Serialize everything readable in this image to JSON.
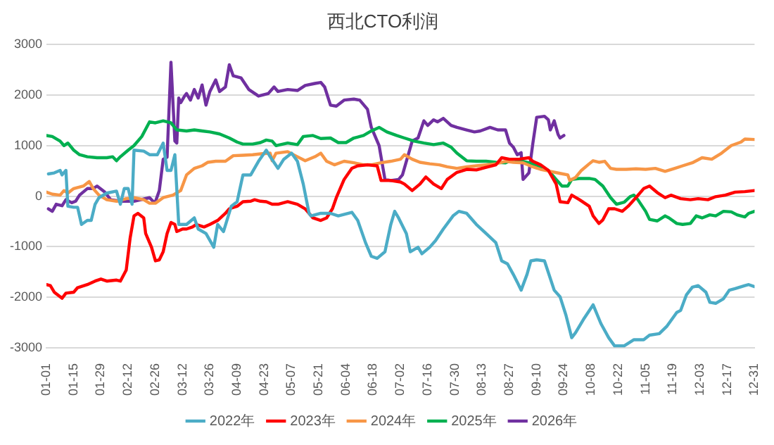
{
  "chart_data": {
    "type": "line",
    "title": "西北CTO利润",
    "xlim": [
      "--01-01",
      "--12-31"
    ],
    "xticks": [
      {
        "value": "--01-01",
        "label": "01-01"
      },
      {
        "value": "--01-15",
        "label": "01-15"
      },
      {
        "value": "--01-29",
        "label": "01-29"
      },
      {
        "value": "--02-12",
        "label": "02-12"
      },
      {
        "value": "--02-26",
        "label": "02-26"
      },
      {
        "value": "--03-12",
        "label": "03-12"
      },
      {
        "value": "--03-26",
        "label": "03-26"
      },
      {
        "value": "--04-09",
        "label": "04-09"
      },
      {
        "value": "--04-23",
        "label": "04-23"
      },
      {
        "value": "--05-07",
        "label": "05-07"
      },
      {
        "value": "--05-21",
        "label": "05-21"
      },
      {
        "value": "--06-04",
        "label": "06-04"
      },
      {
        "value": "--06-18",
        "label": "06-18"
      },
      {
        "value": "--07-02",
        "label": "07-02"
      },
      {
        "value": "--07-16",
        "label": "07-16"
      },
      {
        "value": "--07-30",
        "label": "07-30"
      },
      {
        "value": "--08-13",
        "label": "08-13"
      },
      {
        "value": "--08-27",
        "label": "08-27"
      },
      {
        "value": "--09-10",
        "label": "09-10"
      },
      {
        "value": "--09-24",
        "label": "09-24"
      },
      {
        "value": "--10-08",
        "label": "10-08"
      },
      {
        "value": "--10-22",
        "label": "10-22"
      },
      {
        "value": "--11-05",
        "label": "11-05"
      },
      {
        "value": "--11-19",
        "label": "11-19"
      },
      {
        "value": "--12-03",
        "label": "12-03"
      },
      {
        "value": "--12-17",
        "label": "12-17"
      },
      {
        "value": "--12-31",
        "label": "12-31"
      }
    ],
    "ylim": [
      -3000,
      3000
    ],
    "yticks": [
      -3000,
      -2000,
      -1000,
      0,
      1000,
      2000,
      3000
    ],
    "grid": "y",
    "legend": "bottom",
    "marker": "none",
    "line_style": "solid",
    "series": [
      {
        "name": "2022年",
        "color": "#4bacc6",
        "x": [
          "--01-02",
          "--01-05",
          "--01-08",
          "--01-09",
          "--01-11",
          "--01-12",
          "--01-15",
          "--01-17",
          "--01-19",
          "--01-22",
          "--01-24",
          "--01-26",
          "--01-28",
          "--02-01",
          "--02-06",
          "--02-08",
          "--02-10",
          "--02-12",
          "--02-14",
          "--02-15",
          "--02-20",
          "--02-23",
          "--02-27",
          "--03-02",
          "--03-04",
          "--03-06",
          "--03-08",
          "--03-10",
          "--03-14",
          "--03-18",
          "--03-20",
          "--03-24",
          "--03-28",
          "--03-30",
          "--04-02",
          "--04-06",
          "--04-09",
          "--04-12",
          "--04-16",
          "--04-20",
          "--04-24",
          "--04-26",
          "--04-30",
          "--05-03",
          "--05-07",
          "--05-10",
          "--05-13",
          "--05-16",
          "--05-17",
          "--05-22",
          "--05-27",
          "--05-31",
          "--06-07",
          "--06-10",
          "--06-14",
          "--06-17",
          "--06-20",
          "--06-24",
          "--06-27",
          "--06-29",
          "--07-01",
          "--07-05",
          "--07-07",
          "--07-11",
          "--07-13",
          "--07-17",
          "--07-20",
          "--07-24",
          "--07-29",
          "--08-01",
          "--08-05",
          "--08-10",
          "--08-15",
          "--08-20",
          "--08-23",
          "--08-26",
          "--08-29",
          "--08-31",
          "--09-02",
          "--09-05",
          "--09-07",
          "--09-10",
          "--09-14",
          "--09-19",
          "--09-22",
          "--09-25",
          "--09-28",
          "--09-30",
          "--10-04",
          "--10-09",
          "--10-13",
          "--10-17",
          "--10-20",
          "--10-25",
          "--10-30",
          "--11-04",
          "--11-07",
          "--11-12",
          "--11-16",
          "--11-21",
          "--11-23",
          "--11-26",
          "--11-29",
          "--12-02",
          "--12-06",
          "--12-08",
          "--12-11",
          "--12-15",
          "--12-18",
          "--12-21",
          "--12-26",
          "--12-28",
          "--12-31"
        ],
        "values": [
          440,
          460,
          510,
          420,
          510,
          -200,
          -220,
          -220,
          -560,
          -480,
          -480,
          -160,
          -30,
          60,
          100,
          -160,
          150,
          150,
          -160,
          910,
          890,
          820,
          820,
          1050,
          510,
          510,
          820,
          -560,
          -560,
          -430,
          -650,
          -740,
          -1010,
          -560,
          -700,
          -200,
          -110,
          420,
          420,
          690,
          910,
          780,
          550,
          730,
          850,
          690,
          240,
          -340,
          -390,
          -340,
          -340,
          -390,
          -320,
          -480,
          -920,
          -1190,
          -1230,
          -1100,
          -560,
          -300,
          -430,
          -740,
          -1100,
          -1010,
          -1140,
          -1010,
          -880,
          -650,
          -390,
          -300,
          -340,
          -560,
          -740,
          -920,
          -1280,
          -1340,
          -1550,
          -1700,
          -1860,
          -1550,
          -1280,
          -1260,
          -1280,
          -1860,
          -1990,
          -2350,
          -2800,
          -2700,
          -2440,
          -2150,
          -2520,
          -2800,
          -2960,
          -2960,
          -2840,
          -2840,
          -2750,
          -2720,
          -2570,
          -2300,
          -2260,
          -1950,
          -1800,
          -1770,
          -1900,
          -2100,
          -2120,
          -2030,
          -1860,
          -1830,
          -1770,
          -1750,
          -1790
        ]
      },
      {
        "name": "2023年",
        "color": "#ff0000",
        "x": [
          "--01-01",
          "--01-03",
          "--01-05",
          "--01-09",
          "--01-11",
          "--01-15",
          "--01-17",
          "--01-22",
          "--01-26",
          "--01-29",
          "--02-01",
          "--02-06",
          "--02-08",
          "--02-11",
          "--02-13",
          "--02-15",
          "--02-17",
          "--02-20",
          "--02-21",
          "--02-24",
          "--02-26",
          "--02-28",
          "--03-02",
          "--03-04",
          "--03-06",
          "--03-08",
          "--03-09",
          "--03-12",
          "--03-14",
          "--03-17",
          "--03-19",
          "--03-23",
          "--03-26",
          "--03-30",
          "--04-03",
          "--04-05",
          "--04-09",
          "--04-12",
          "--04-16",
          "--04-18",
          "--04-21",
          "--04-24",
          "--04-27",
          "--04-30",
          "--05-05",
          "--05-10",
          "--05-14",
          "--05-18",
          "--05-22",
          "--05-25",
          "--05-28",
          "--05-30",
          "--06-03",
          "--06-07",
          "--06-10",
          "--06-15",
          "--06-20",
          "--06-22",
          "--06-27",
          "--07-02",
          "--07-04",
          "--07-08",
          "--07-12",
          "--07-15",
          "--07-19",
          "--07-23",
          "--07-26",
          "--07-31",
          "--08-05",
          "--08-10",
          "--08-15",
          "--08-20",
          "--08-23",
          "--08-27",
          "--09-01",
          "--09-06",
          "--09-08",
          "--09-12",
          "--09-16",
          "--09-20",
          "--09-22",
          "--09-26",
          "--09-28",
          "--10-02",
          "--10-07",
          "--10-09",
          "--10-12",
          "--10-14",
          "--10-17",
          "--10-20",
          "--10-24",
          "--10-27",
          "--10-31",
          "--11-04",
          "--11-07",
          "--11-11",
          "--11-15",
          "--11-18",
          "--11-23",
          "--11-28",
          "--12-02",
          "--12-07",
          "--12-11",
          "--12-16",
          "--12-21",
          "--12-26",
          "--12-31"
        ],
        "values": [
          -1750,
          -1770,
          -1900,
          -2020,
          -1920,
          -1900,
          -1810,
          -1750,
          -1680,
          -1640,
          -1680,
          -1660,
          -1680,
          -1460,
          -830,
          -390,
          -340,
          -430,
          -740,
          -1010,
          -1280,
          -1260,
          -1100,
          -740,
          -520,
          -560,
          -700,
          -650,
          -650,
          -610,
          -560,
          -610,
          -560,
          -480,
          -340,
          -250,
          -200,
          -110,
          -100,
          -70,
          -100,
          -110,
          -160,
          -160,
          -110,
          -160,
          -250,
          -430,
          -480,
          -430,
          -250,
          -30,
          330,
          550,
          600,
          620,
          600,
          310,
          310,
          280,
          240,
          110,
          240,
          380,
          240,
          150,
          330,
          470,
          530,
          520,
          570,
          620,
          760,
          730,
          730,
          760,
          690,
          620,
          510,
          240,
          -110,
          -130,
          20,
          -70,
          -200,
          -390,
          -540,
          -470,
          -250,
          -250,
          -300,
          -200,
          -30,
          150,
          200,
          70,
          -30,
          20,
          -50,
          -70,
          -50,
          -70,
          -10,
          20,
          80,
          90,
          110
        ]
      },
      {
        "name": "2024年",
        "color": "#f79646",
        "x": [
          "--01-01",
          "--01-04",
          "--01-08",
          "--01-10",
          "--01-12",
          "--01-15",
          "--01-20",
          "--01-23",
          "--01-25",
          "--01-28",
          "--02-01",
          "--02-06",
          "--02-11",
          "--02-15",
          "--02-20",
          "--02-23",
          "--02-26",
          "--03-02",
          "--03-07",
          "--03-11",
          "--03-14",
          "--03-18",
          "--03-22",
          "--03-25",
          "--03-29",
          "--04-03",
          "--04-07",
          "--04-12",
          "--04-17",
          "--04-22",
          "--04-26",
          "--04-27",
          "--04-29",
          "--05-05",
          "--05-10",
          "--05-14",
          "--05-19",
          "--05-22",
          "--05-25",
          "--05-29",
          "--06-03",
          "--06-08",
          "--06-13",
          "--06-17",
          "--06-22",
          "--06-27",
          "--07-02",
          "--07-04",
          "--07-08",
          "--07-12",
          "--07-17",
          "--07-22",
          "--07-26",
          "--07-31",
          "--08-05",
          "--08-10",
          "--08-15",
          "--08-20",
          "--08-25",
          "--08-29",
          "--09-03",
          "--09-08",
          "--09-12",
          "--09-17",
          "--09-22",
          "--09-26",
          "--09-27",
          "--09-30",
          "--10-03",
          "--10-07",
          "--10-09",
          "--10-12",
          "--10-15",
          "--10-18",
          "--10-21",
          "--10-26",
          "--10-31",
          "--11-05",
          "--11-10",
          "--11-15",
          "--11-20",
          "--11-24",
          "--11-29",
          "--12-04",
          "--12-09",
          "--12-14",
          "--12-19",
          "--12-24",
          "--12-26",
          "--12-31"
        ],
        "values": [
          80,
          40,
          20,
          110,
          60,
          150,
          200,
          290,
          150,
          20,
          -70,
          -100,
          -50,
          -30,
          -70,
          -140,
          -140,
          -30,
          20,
          110,
          420,
          550,
          600,
          670,
          690,
          690,
          800,
          810,
          820,
          840,
          850,
          700,
          850,
          880,
          780,
          700,
          780,
          850,
          690,
          620,
          690,
          660,
          620,
          620,
          660,
          690,
          730,
          820,
          730,
          670,
          640,
          620,
          580,
          550,
          580,
          600,
          620,
          640,
          690,
          670,
          660,
          580,
          530,
          490,
          450,
          420,
          310,
          370,
          510,
          640,
          700,
          670,
          690,
          550,
          530,
          530,
          540,
          530,
          550,
          490,
          550,
          600,
          660,
          760,
          730,
          850,
          1000,
          1070,
          1130,
          1120
        ]
      },
      {
        "name": "2025年",
        "color": "#00b050",
        "x": [
          "--01-01",
          "--01-04",
          "--01-08",
          "--01-10",
          "--01-12",
          "--01-15",
          "--01-18",
          "--01-22",
          "--01-27",
          "--02-01",
          "--02-04",
          "--02-06",
          "--02-08",
          "--02-12",
          "--02-15",
          "--02-19",
          "--02-23",
          "--02-26",
          "--03-02",
          "--03-06",
          "--03-09",
          "--03-14",
          "--03-18",
          "--03-22",
          "--03-26",
          "--03-31",
          "--04-05",
          "--04-09",
          "--04-12",
          "--04-17",
          "--04-21",
          "--04-24",
          "--04-27",
          "--04-29",
          "--05-05",
          "--05-10",
          "--05-13",
          "--05-18",
          "--05-22",
          "--05-27",
          "--05-31",
          "--06-04",
          "--06-08",
          "--06-13",
          "--06-17",
          "--06-21",
          "--06-25",
          "--06-30",
          "--07-04",
          "--07-09",
          "--07-14",
          "--07-19",
          "--07-24",
          "--07-28",
          "--07-31",
          "--08-05",
          "--08-10",
          "--08-15",
          "--08-20",
          "--08-25",
          "--08-29",
          "--09-03",
          "--09-08",
          "--09-12",
          "--09-16",
          "--09-20",
          "--09-23",
          "--09-26",
          "--09-28",
          "--10-02",
          "--10-07",
          "--10-10",
          "--10-14",
          "--10-18",
          "--10-21",
          "--10-25",
          "--10-28",
          "--10-30",
          "--11-01",
          "--11-05",
          "--11-07",
          "--11-11",
          "--11-15",
          "--11-17",
          "--11-21",
          "--11-24",
          "--11-28",
          "--12-01",
          "--12-04",
          "--12-08",
          "--12-11",
          "--12-15",
          "--12-19",
          "--12-22",
          "--12-26",
          "--12-28",
          "--12-31"
        ],
        "values": [
          1200,
          1180,
          1090,
          1000,
          1050,
          910,
          820,
          780,
          760,
          760,
          780,
          700,
          780,
          910,
          1000,
          1180,
          1470,
          1450,
          1490,
          1450,
          1310,
          1290,
          1310,
          1290,
          1270,
          1230,
          1150,
          1070,
          1030,
          1030,
          1060,
          1110,
          1090,
          1000,
          1050,
          1020,
          1180,
          1200,
          1140,
          1150,
          1060,
          1060,
          1150,
          1200,
          1290,
          1360,
          1270,
          1200,
          1150,
          1090,
          1050,
          1020,
          1050,
          970,
          850,
          700,
          690,
          690,
          670,
          660,
          730,
          690,
          640,
          580,
          510,
          330,
          200,
          200,
          330,
          350,
          350,
          330,
          200,
          -30,
          -160,
          -120,
          -10,
          20,
          -70,
          -300,
          -460,
          -490,
          -390,
          -430,
          -540,
          -560,
          -540,
          -390,
          -430,
          -370,
          -390,
          -300,
          -310,
          -370,
          -410,
          -340,
          -300
        ]
      },
      {
        "name": "2026年",
        "color": "#7030a0",
        "x": [
          "--01-02",
          "--01-04",
          "--01-06",
          "--01-09",
          "--01-11",
          "--01-14",
          "--01-16",
          "--01-18",
          "--01-22",
          "--01-25",
          "--01-27",
          "--01-31",
          "--02-03",
          "--02-08",
          "--02-15",
          "--02-23",
          "--02-25",
          "--02-26",
          "--02-28",
          "--03-02",
          "--03-04",
          "--03-06",
          "--03-08",
          "--03-09",
          "--03-10",
          "--03-11",
          "--03-13",
          "--03-14",
          "--03-16",
          "--03-18",
          "--03-20",
          "--03-22",
          "--03-24",
          "--03-26",
          "--03-29",
          "--03-31",
          "--04-03",
          "--04-05",
          "--04-07",
          "--04-11",
          "--04-15",
          "--04-20",
          "--04-25",
          "--04-28",
          "--04-30",
          "--05-05",
          "--05-10",
          "--05-14",
          "--05-19",
          "--05-22",
          "--05-24",
          "--05-27",
          "--05-30",
          "--06-03",
          "--06-08",
          "--06-11",
          "--06-15",
          "--06-17",
          "--06-21",
          "--06-24",
          "--06-27",
          "--07-01",
          "--07-03",
          "--07-08",
          "--07-11",
          "--07-14",
          "--07-16",
          "--07-19",
          "--07-21",
          "--07-24",
          "--07-28",
          "--07-31",
          "--08-05",
          "--08-09",
          "--08-12",
          "--08-17",
          "--08-21",
          "--08-25",
          "--08-27",
          "--08-29",
          "--08-31",
          "--09-02",
          "--09-03",
          "--09-06",
          "--09-08",
          "--09-10",
          "--09-14",
          "--09-16",
          "--09-17",
          "--09-19",
          "--09-21",
          "--09-22",
          "--09-24"
        ],
        "values": [
          -250,
          -300,
          -160,
          -190,
          -70,
          -130,
          -100,
          20,
          150,
          150,
          200,
          80,
          -70,
          -100,
          -100,
          -30,
          -110,
          -110,
          110,
          730,
          770,
          2650,
          1090,
          1050,
          1940,
          1850,
          1980,
          2030,
          1900,
          2110,
          1940,
          2200,
          1800,
          2070,
          2300,
          2070,
          2160,
          2600,
          2380,
          2340,
          2110,
          1980,
          2030,
          2160,
          2070,
          2110,
          2090,
          2190,
          2230,
          2250,
          2160,
          1800,
          1780,
          1900,
          1920,
          1900,
          1720,
          1360,
          1000,
          330,
          310,
          330,
          420,
          1090,
          1150,
          1490,
          1400,
          1510,
          1470,
          1540,
          1400,
          1360,
          1310,
          1270,
          1290,
          1360,
          1310,
          1310,
          1050,
          970,
          820,
          860,
          330,
          460,
          1040,
          1560,
          1580,
          1510,
          1310,
          1490,
          1220,
          1150,
          1200
        ]
      }
    ]
  }
}
